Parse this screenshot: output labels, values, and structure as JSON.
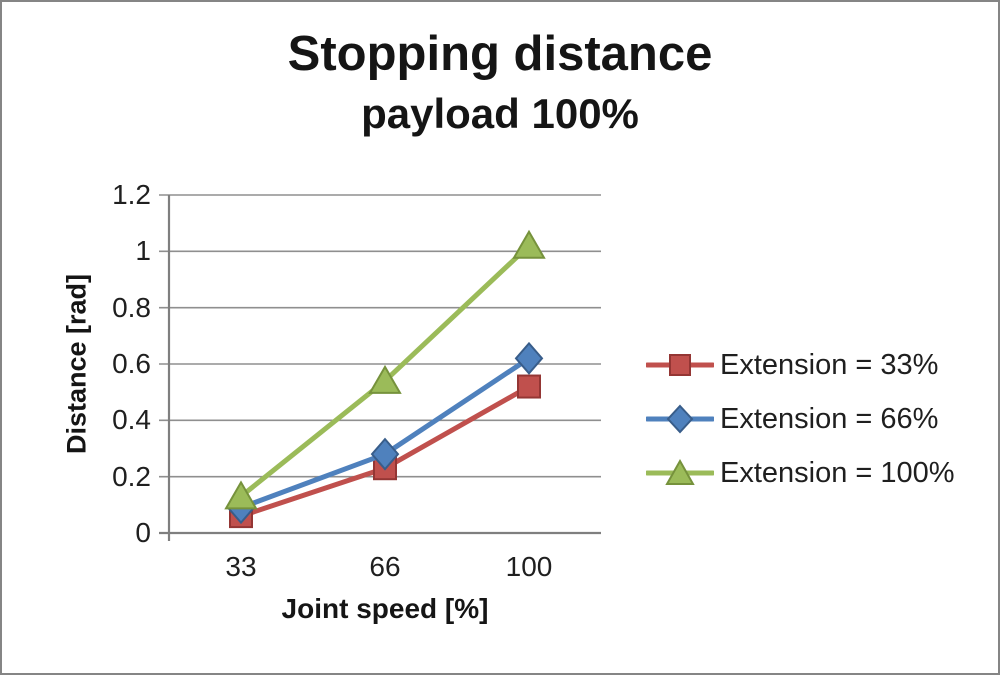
{
  "frame": {
    "border_color": "#858585",
    "background": "#ffffff"
  },
  "chart_data": {
    "type": "line",
    "title": "Stopping distance",
    "subtitle": "payload 100%",
    "xlabel": "Joint speed [%]",
    "ylabel": "Distance [rad]",
    "categories": [
      "33",
      "66",
      "100"
    ],
    "y_tick_labels": [
      "0",
      "0.2",
      "0.4",
      "0.6",
      "0.8",
      "1",
      "1.2"
    ],
    "y_tick_values": [
      0,
      0.2,
      0.4,
      0.6,
      0.8,
      1.0,
      1.2
    ],
    "ylim": [
      0,
      1.2
    ],
    "grid": true,
    "legend_position": "right",
    "gridline_color": "#8f8f8f",
    "axis_color": "#7f7f7f",
    "text_color": "#1f1f1f",
    "series": [
      {
        "name": "Extension = 33%",
        "marker": "square",
        "color": "#c0504d",
        "edge_color": "#943634",
        "values": [
          0.06,
          0.23,
          0.52
        ]
      },
      {
        "name": "Extension = 66%",
        "marker": "diamond",
        "color": "#4f81bd",
        "edge_color": "#385d8a",
        "values": [
          0.09,
          0.28,
          0.62
        ]
      },
      {
        "name": "Extension = 100%",
        "marker": "triangle",
        "color": "#9bbb59",
        "edge_color": "#76923c",
        "values": [
          0.13,
          0.54,
          1.02
        ]
      }
    ]
  }
}
